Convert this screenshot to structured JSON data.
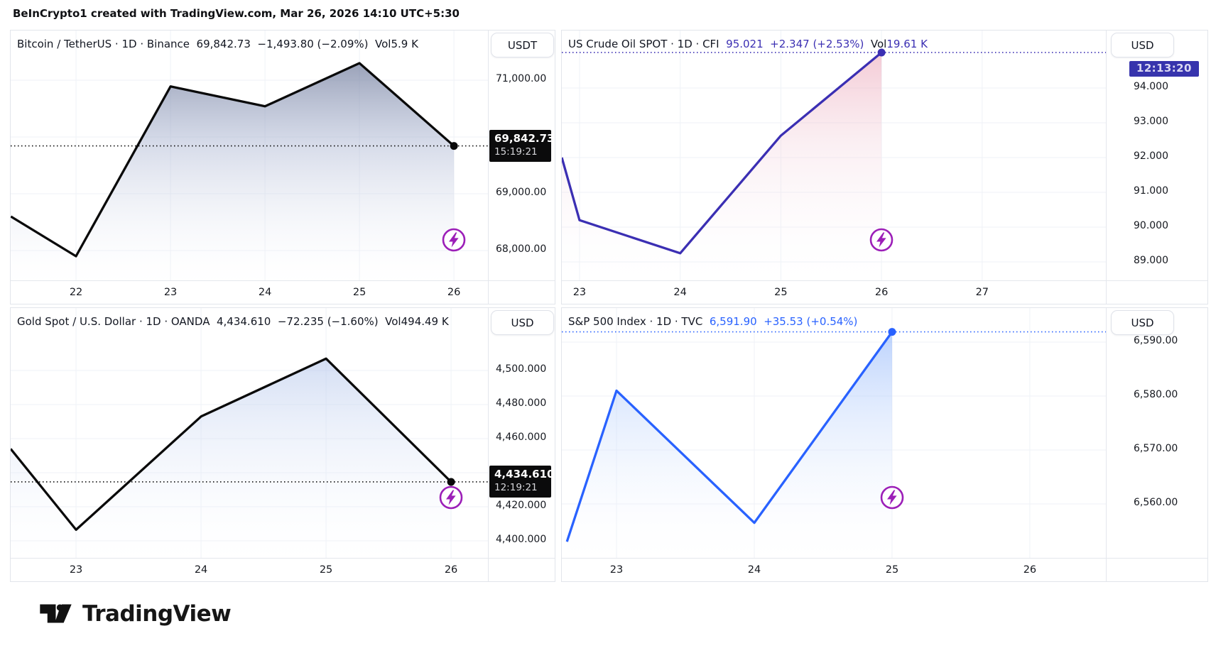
{
  "header": {
    "attribution": "BeInCrypto1 created with TradingView.com, Mar 26, 2026 14:10 UTC+5:30"
  },
  "footer": {
    "brand": "TradingView"
  },
  "colors": {
    "text_dark": "#131722",
    "grid": "#eff2f7",
    "border": "#e2e5eb",
    "badge_bg": "#0b0b0c",
    "countdown_bg": "#3734ad",
    "flash_icon": "#9c1fb8",
    "crude_accent": "#3b2fb3",
    "sp500_accent": "#2962ff"
  },
  "chart_data": [
    {
      "id": "btcusdt",
      "type": "area",
      "title": "Bitcoin / TetherUS · 1D · Binance",
      "legend_parts": [
        [
          "Bitcoin / TetherUS · 1D · Binance",
          "#131722"
        ],
        [
          "  69,842.73  −1,493.80 (−2.09%)",
          "#131722"
        ],
        [
          "  Vol",
          "#131722"
        ],
        [
          "5.9 K",
          "#131722"
        ]
      ],
      "currency_button": "USDT",
      "line_color": "#0a0a0a",
      "fill_stops": [
        [
          "0%",
          "rgba(99,110,141,0.85)"
        ],
        [
          "45%",
          "rgba(173,183,211,0.5)"
        ],
        [
          "100%",
          "rgba(246,248,253,0.04)"
        ]
      ],
      "x": [
        21.31,
        22,
        23,
        24,
        25,
        26
      ],
      "values": [
        68600,
        67900,
        70890,
        70540,
        71300,
        69842.73
      ],
      "x_ticks": [
        [
          22,
          "22"
        ],
        [
          23,
          "23"
        ],
        [
          24,
          "24"
        ],
        [
          25,
          "25"
        ],
        [
          26,
          "26"
        ]
      ],
      "y_ticks": [
        [
          71000,
          "71,000.00"
        ],
        [
          70000,
          "70,000.00"
        ],
        [
          69000,
          "69,000.00"
        ],
        [
          68000,
          "68,000.00"
        ]
      ],
      "x_range": [
        21.308,
        26.36
      ],
      "y_range": [
        67475,
        71875
      ],
      "last_value": 69842.73,
      "price_badge": {
        "price": "69,842.73",
        "time": "15:19:21"
      },
      "countdown_badge": null
    },
    {
      "id": "crude-oil",
      "type": "area",
      "title": "US Crude Oil SPOT · 1D · CFI",
      "legend_parts": [
        [
          "US Crude Oil SPOT · 1D · CFI",
          "#131722"
        ],
        [
          "  95.021  +2.347 (+2.53%)",
          "#3b2fb3"
        ],
        [
          "  Vol",
          "#131722"
        ],
        [
          "19.61 K",
          "#3b2fb3"
        ]
      ],
      "currency_button": "USD",
      "line_color": "#3b2fb3",
      "fill_stops": [
        [
          "0%",
          "rgba(233,148,170,0.6)"
        ],
        [
          "45%",
          "rgba(242,205,216,0.32)"
        ],
        [
          "100%",
          "rgba(250,250,255,0.02)"
        ]
      ],
      "x": [
        22.824,
        23,
        24,
        25,
        26
      ],
      "values": [
        92.0,
        90.2,
        89.25,
        92.63,
        95.021
      ],
      "x_ticks": [
        [
          23,
          "23"
        ],
        [
          24,
          "24"
        ],
        [
          25,
          "25"
        ],
        [
          26,
          "26"
        ],
        [
          27,
          "27"
        ]
      ],
      "y_ticks": [
        [
          94,
          "94.000"
        ],
        [
          93,
          "93.000"
        ],
        [
          92,
          "92.000"
        ],
        [
          91,
          "91.000"
        ],
        [
          90,
          "90.000"
        ],
        [
          89,
          "89.000"
        ]
      ],
      "x_range": [
        22.824,
        28.229
      ],
      "y_range": [
        88.47,
        95.653
      ],
      "last_value": 95.021,
      "price_badge": null,
      "countdown_badge": {
        "text": "12:13:20"
      }
    },
    {
      "id": "gold",
      "type": "area",
      "title": "Gold Spot / U.S. Dollar · 1D · OANDA",
      "legend_parts": [
        [
          "Gold Spot / U.S. Dollar · 1D · OANDA",
          "#131722"
        ],
        [
          "  4,434.610  −72.235 (−1.60%)",
          "#131722"
        ],
        [
          "  Vol",
          "#131722"
        ],
        [
          "494.49 K",
          "#131722"
        ]
      ],
      "currency_button": "USD",
      "line_color": "#0a0a0a",
      "fill_stops": [
        [
          "0%",
          "rgba(155,178,228,0.68)"
        ],
        [
          "45%",
          "rgba(203,216,242,0.4)"
        ],
        [
          "100%",
          "rgba(248,250,255,0.03)"
        ]
      ],
      "x": [
        22.477,
        23,
        24,
        25,
        26
      ],
      "values": [
        4454,
        4406.5,
        4473,
        4507,
        4434.61
      ],
      "x_ticks": [
        [
          23,
          "23"
        ],
        [
          24,
          "24"
        ],
        [
          25,
          "25"
        ],
        [
          26,
          "26"
        ]
      ],
      "y_ticks": [
        [
          4500,
          "4,500.000"
        ],
        [
          4480,
          "4,480.000"
        ],
        [
          4460,
          "4,460.000"
        ],
        [
          4440,
          "4,440.000"
        ],
        [
          4420,
          "4,420.000"
        ],
        [
          4400,
          "4,400.000"
        ]
      ],
      "x_range": [
        22.477,
        26.295
      ],
      "y_range": [
        4390,
        4536.7
      ],
      "last_value": 4434.61,
      "price_badge": {
        "price": "4,434.610",
        "time": "12:19:21"
      },
      "countdown_badge": null
    },
    {
      "id": "sp500",
      "type": "area",
      "title": "S&P 500 Index · 1D · TVC",
      "legend_parts": [
        [
          "S&P 500 Index · 1D · TVC",
          "#131722"
        ],
        [
          "  6,591.90  +35.53 (+0.54%)",
          "#2962ff"
        ]
      ],
      "currency_button": "USD",
      "line_color": "#2962ff",
      "fill_stops": [
        [
          "0%",
          "rgba(124,168,250,0.62)"
        ],
        [
          "45%",
          "rgba(191,213,252,0.38)"
        ],
        [
          "100%",
          "rgba(250,251,255,0.03)"
        ]
      ],
      "x": [
        22.64,
        23,
        24,
        25
      ],
      "values": [
        6553,
        6581,
        6556.5,
        6591.9
      ],
      "x_ticks": [
        [
          23,
          "23"
        ],
        [
          24,
          "24"
        ],
        [
          25,
          "25"
        ],
        [
          26,
          "26"
        ]
      ],
      "y_ticks": [
        [
          6590,
          "6,590.00"
        ],
        [
          6580,
          "6,580.00"
        ],
        [
          6570,
          "6,570.00"
        ],
        [
          6560,
          "6,560.00"
        ]
      ],
      "x_range": [
        22.603,
        26.552
      ],
      "y_range": [
        6550,
        6596.32
      ],
      "last_value": 6591.9,
      "price_badge": null,
      "countdown_badge": null
    }
  ]
}
